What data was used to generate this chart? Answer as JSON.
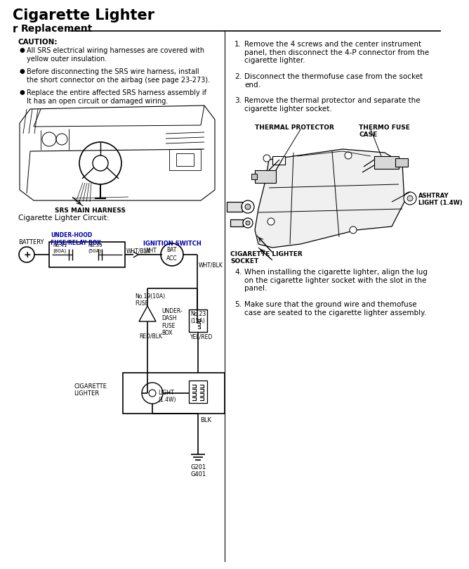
{
  "title": "Cigarette Lighter",
  "subtitle": "Replacement",
  "bg_color": "#ffffff",
  "caution_title": "CAUTION:",
  "caution_bullets": [
    "All SRS electrical wiring harnesses are covered with\nyellow outer insulation.",
    "Before disconnecting the SRS wire harness, install\nthe short connector on the airbag (see page 23-273).",
    "Replace the entire affected SRS harness assembly if\nIt has an open circuit or damaged wiring."
  ],
  "circuit_label": "Cigarette Lighter Circuit:",
  "steps_right_1_3": [
    [
      "1.",
      "Remove the 4 screws and the center instrument\npanel, then disconnect the 4-P connector from the\ncigarette lighter."
    ],
    [
      "2.",
      "Disconnect the thermofuse case from the socket\nend."
    ],
    [
      "3.",
      "Remove the thermal protector and separate the\ncigarette lighter socket."
    ]
  ],
  "steps_right_4_5": [
    [
      "4.",
      "When installing the cigarette lighter, align the lug\non the cigarette lighter socket with the slot in the\npanel."
    ],
    [
      "5.",
      "Make sure that the ground wire and themofuse\ncase are seated to the cigarette lighter assembly."
    ]
  ],
  "thermal_protector_label": "THERMAL PROTECTOR",
  "thermo_fuse_label": "THERMO FUSE\nCASE",
  "ashtray_light_label": "ASHTRAY\nLIGHT (1.4W)",
  "cig_socket_label": "CIGARETTE LIGHTER\nSOCKET",
  "srs_label": "SRS MAIN HARNESS",
  "battery_label": "BATTERY",
  "underhood_label": "UNDER-HOOD\nFUSE/RELAY BOX",
  "ignition_label": "IGNITION SWITCH",
  "no41_label": "No.41\n(80A)",
  "no39_label": "No.39\n(50A)",
  "wht_blk": "WHT/BLK",
  "wht": "WHT",
  "bat": "BAT",
  "acc": "ACC",
  "no19_label": "No.19(10A)\nFUSE",
  "underdash_label": "UNDER-\nDASH\nFUSE\nBOX",
  "no23_label": "No.23\n(15A)",
  "red_blk": "RED/BLK",
  "yel_red": "YEL/RED",
  "cig_lighter_label": "CIGARETTE\nLIGHTER",
  "light_label": "LIGHT\n(1.4W)",
  "blk": "BLK",
  "ground_label": "G201\nG401"
}
